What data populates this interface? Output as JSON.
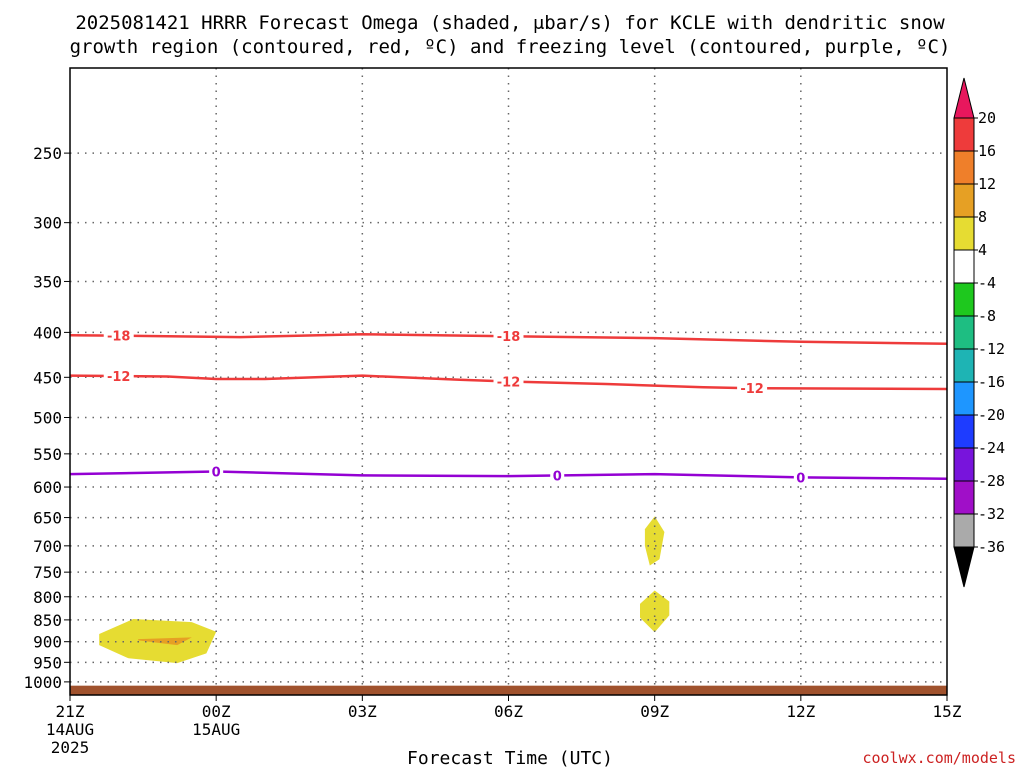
{
  "chart_data": {
    "type": "contour",
    "title_lines": [
      "2025081421 HRRR Forecast Omega (shaded, μbar/s) for KCLE with dendritic snow",
      "growth region (contoured, red, ºC) and freezing level (contoured, purple, ºC)"
    ],
    "xlabel": "Forecast Time (UTC)",
    "credit": "coolwx.com/models",
    "x_hours": [
      0,
      3,
      6,
      9,
      12,
      15,
      18
    ],
    "x_ticks": [
      {
        "hour": 0,
        "lines": [
          "21Z",
          "14AUG",
          "2025"
        ]
      },
      {
        "hour": 3,
        "lines": [
          "00Z",
          "15AUG"
        ]
      },
      {
        "hour": 6,
        "lines": [
          "03Z"
        ]
      },
      {
        "hour": 9,
        "lines": [
          "06Z"
        ]
      },
      {
        "hour": 12,
        "lines": [
          "09Z"
        ]
      },
      {
        "hour": 15,
        "lines": [
          "12Z"
        ]
      },
      {
        "hour": 18,
        "lines": [
          "15Z"
        ]
      }
    ],
    "y_ticks": [
      250,
      300,
      350,
      400,
      450,
      500,
      550,
      600,
      650,
      700,
      750,
      800,
      850,
      900,
      950,
      1000
    ],
    "y_range_hpa": [
      200,
      1035
    ],
    "y_scale": "log-pressure",
    "grid": true,
    "surface_ground_hpa": 1010,
    "ground_color": "#a0522d",
    "contours": [
      {
        "value": -18,
        "label": "-18",
        "color": "#ee3b3b",
        "points": [
          [
            0,
            403
          ],
          [
            2,
            404
          ],
          [
            3.5,
            405
          ],
          [
            6,
            402
          ],
          [
            9,
            404
          ],
          [
            12,
            406
          ],
          [
            15,
            410
          ],
          [
            18,
            412
          ]
        ],
        "label_hours": [
          1,
          9
        ]
      },
      {
        "value": -12,
        "label": "-12",
        "color": "#ee3b3b",
        "points": [
          [
            0,
            448
          ],
          [
            2,
            449
          ],
          [
            3,
            452
          ],
          [
            4,
            452
          ],
          [
            6,
            448
          ],
          [
            8,
            453
          ],
          [
            9,
            455
          ],
          [
            11,
            458
          ],
          [
            13,
            462
          ],
          [
            14,
            463
          ],
          [
            18,
            464
          ]
        ],
        "label_hours": [
          1,
          9,
          14
        ]
      },
      {
        "value": 0,
        "label": "0",
        "color": "#9400d3",
        "points": [
          [
            0,
            580
          ],
          [
            3,
            576
          ],
          [
            6,
            582
          ],
          [
            9,
            583
          ],
          [
            12,
            580
          ],
          [
            15,
            585
          ],
          [
            18,
            587
          ]
        ],
        "label_hours": [
          3,
          10,
          15
        ]
      }
    ],
    "shaded_regions": [
      {
        "level": "4 to 8",
        "color": "#e6dc32",
        "points": [
          [
            0.6,
            882
          ],
          [
            1.3,
            848
          ],
          [
            2.5,
            855
          ],
          [
            3.0,
            877
          ],
          [
            2.8,
            928
          ],
          [
            2.2,
            952
          ],
          [
            1.2,
            940
          ],
          [
            0.6,
            908
          ]
        ]
      },
      {
        "level": "8 to 12",
        "color": "#e6a024",
        "points": [
          [
            1.4,
            894
          ],
          [
            2.5,
            890
          ],
          [
            2.2,
            908
          ],
          [
            1.4,
            897
          ]
        ]
      },
      {
        "level": "4 to 8",
        "color": "#e6dc32",
        "points": [
          [
            12,
            648
          ],
          [
            12.2,
            675
          ],
          [
            12.1,
            725
          ],
          [
            11.9,
            737
          ],
          [
            11.8,
            700
          ],
          [
            11.8,
            670
          ]
        ]
      },
      {
        "level": "4 to 8",
        "color": "#e6dc32",
        "points": [
          [
            12,
            787
          ],
          [
            12.3,
            810
          ],
          [
            12.3,
            840
          ],
          [
            12.0,
            878
          ],
          [
            11.7,
            845
          ],
          [
            11.7,
            815
          ]
        ]
      }
    ],
    "colorbar": {
      "labels": [
        "20",
        "16",
        "12",
        "8",
        "4",
        "-4",
        "-8",
        "-12",
        "-16",
        "-20",
        "-24",
        "-28",
        "-32",
        "-36"
      ],
      "colors": [
        "#e8175d",
        "#ee3b3b",
        "#ef7f2a",
        "#e6a024",
        "#e6dc32",
        "#ffffff",
        "#1ec81e",
        "#1ebe82",
        "#1eb4b4",
        "#1e96ff",
        "#1e3cff",
        "#7814dc",
        "#a00fc8",
        "#aaaaaa",
        "#000000"
      ],
      "top_arrow_color": "#e8175d",
      "bottom_arrow_color": "#000000"
    }
  }
}
